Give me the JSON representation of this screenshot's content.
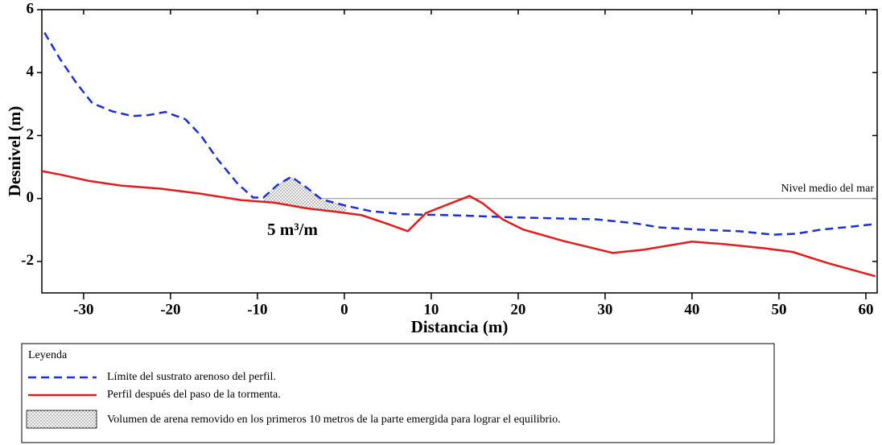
{
  "chart_data": {
    "type": "line",
    "x_label": "Distancia (m)",
    "y_label": "Desnivel (m)",
    "xlim": [
      -34.8,
      61.3
    ],
    "xticks": [
      -30,
      -20,
      -10,
      0,
      10,
      20,
      30,
      40,
      50,
      60
    ],
    "ylim": [
      -3,
      6
    ],
    "yticks": [
      -2,
      0,
      2,
      4,
      6
    ],
    "legend_title": "Leyenda",
    "series": [
      {
        "name": "Límite del sustrato arenoso del perfil.",
        "color": "#1a2fd6",
        "dash": true,
        "x": [
          -34.5,
          -32.7,
          -30.8,
          -29,
          -26.7,
          -24.4,
          -22.5,
          -20.6,
          -18.3,
          -16.5,
          -14.6,
          -12.3,
          -10.5,
          -9.3,
          -7.7,
          -6.1,
          -4.4,
          -2.6,
          0.2,
          3,
          6.7,
          12.2,
          19.6,
          28.9,
          33.5,
          36.3,
          40.9,
          45.5,
          49.3,
          52,
          54.8,
          58.5,
          61.1
        ],
        "values": [
          5.27,
          4.43,
          3.66,
          3.03,
          2.77,
          2.62,
          2.65,
          2.75,
          2.52,
          2.0,
          1.25,
          0.48,
          0.03,
          0.03,
          0.43,
          0.69,
          0.36,
          -0.03,
          -0.23,
          -0.4,
          -0.5,
          -0.53,
          -0.6,
          -0.66,
          -0.79,
          -0.92,
          -0.99,
          -1.04,
          -1.15,
          -1.12,
          -0.99,
          -0.89,
          -0.81
        ]
      },
      {
        "name": "Perfil  después del paso de la tormenta.",
        "color": "#e31b1b",
        "dash": false,
        "x": [
          -34.8,
          -32.7,
          -29.4,
          -25.7,
          -21.1,
          -16.5,
          -11.9,
          -8.1,
          -4.4,
          -0.7,
          2,
          4.8,
          7.3,
          9.4,
          11.8,
          14.4,
          15.9,
          18.2,
          20.6,
          25.2,
          30.9,
          34.4,
          40,
          43.7,
          48.3,
          51.6,
          55.7,
          61.1
        ],
        "values": [
          0.87,
          0.76,
          0.56,
          0.41,
          0.31,
          0.15,
          -0.05,
          -0.13,
          -0.31,
          -0.43,
          -0.53,
          -0.79,
          -1.04,
          -0.46,
          -0.2,
          0.08,
          -0.15,
          -0.66,
          -0.99,
          -1.35,
          -1.73,
          -1.63,
          -1.37,
          -1.45,
          -1.58,
          -1.7,
          -2.06,
          -2.47
        ]
      }
    ],
    "shade_xlim": [
      -9.3,
      0.2
    ],
    "shade_label": "Volumen de arena removido en los primeros  10 metros de la parte emergida para lograr el equilibrio.",
    "shade_annotation": "5 m³/m",
    "reference_line": {
      "y": 0,
      "label": "Nivel medio del mar",
      "color": "#999999"
    }
  }
}
